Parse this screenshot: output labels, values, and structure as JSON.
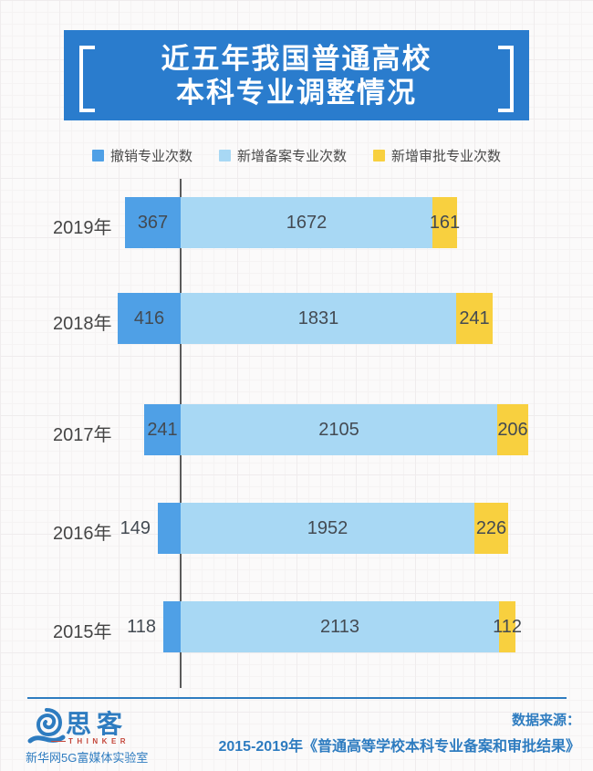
{
  "title": {
    "line1": "近五年我国普通高校",
    "line2": "本科专业调整情况",
    "bg_color": "#2a7ccd"
  },
  "legend": [
    {
      "label": "撤销专业次数"
    },
    {
      "label": "新增备案专业次数"
    },
    {
      "label": "新增审批专业次数"
    }
  ],
  "chart_data": {
    "type": "bar",
    "subtype": "horizontal-stacked",
    "categories": [
      "2019年",
      "2018年",
      "2017年",
      "2016年",
      "2015年"
    ],
    "series": [
      {
        "name": "撤销专业次数",
        "color": "#4fa0e6",
        "values": [
          367,
          416,
          241,
          149,
          118
        ]
      },
      {
        "name": "新增备案专业次数",
        "color": "#a8d8f4",
        "values": [
          1672,
          1831,
          2105,
          1952,
          2113
        ]
      },
      {
        "name": "新增审批专业次数",
        "color": "#f8d03f",
        "values": [
          161,
          241,
          206,
          226,
          112
        ]
      }
    ],
    "title": "近五年我国普通高校本科专业调整情况",
    "xlabel": "",
    "ylabel": "",
    "legend_position": "top",
    "grid": false,
    "notes": "撤销(blue) segment drawn to the left of a vertical baseline; 新增备案(light blue) and 新增审批(yellow) extend right of it; values printed on segments"
  },
  "footer": {
    "logo_name": "思客",
    "logo_subtitle": "THINKER",
    "logo_org": "新华网5G富媒体实验室",
    "source_label": "数据来源：",
    "source_text": "2015-2019年《普通高等学校本科专业备案和审批结果》"
  },
  "colors": {
    "title_bg": "#2a7ccd",
    "bar_blue": "#4fa0e6",
    "bar_light_blue": "#a8d8f4",
    "bar_yellow": "#f8d03f",
    "axis_line": "#5a5a5a",
    "text_dark": "#454545",
    "footer_blue": "#2e7cc0",
    "thinker_red": "#c4473b"
  }
}
